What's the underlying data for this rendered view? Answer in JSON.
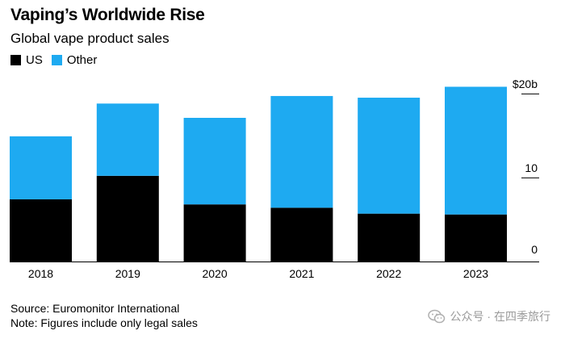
{
  "title": "Vaping’s Worldwide Rise",
  "subtitle": "Global vape product sales",
  "legend": {
    "us": {
      "label": "US",
      "color": "#000000"
    },
    "other": {
      "label": "Other",
      "color": "#1eaaf1"
    }
  },
  "chart_data": {
    "type": "bar",
    "stacked": true,
    "categories": [
      "2018",
      "2019",
      "2020",
      "2021",
      "2022",
      "2023"
    ],
    "series": [
      {
        "name": "US",
        "color": "#000000",
        "values": [
          7.4,
          10.2,
          6.8,
          6.4,
          5.7,
          5.6
        ]
      },
      {
        "name": "Other",
        "color": "#1eaaf1",
        "values": [
          7.5,
          8.6,
          10.3,
          13.3,
          13.8,
          15.2
        ]
      }
    ],
    "ylim": [
      0,
      22
    ],
    "yticks": [
      0,
      10,
      20
    ],
    "ytick_labels": [
      "0",
      "10",
      "$20b"
    ],
    "y_axis_side": "right",
    "grid": false
  },
  "source": "Source: Euromonitor International",
  "note": "Note: Figures include only legal sales",
  "watermark": "公众号 · 在四季旅行",
  "wechat_icon": "wechat-icon"
}
